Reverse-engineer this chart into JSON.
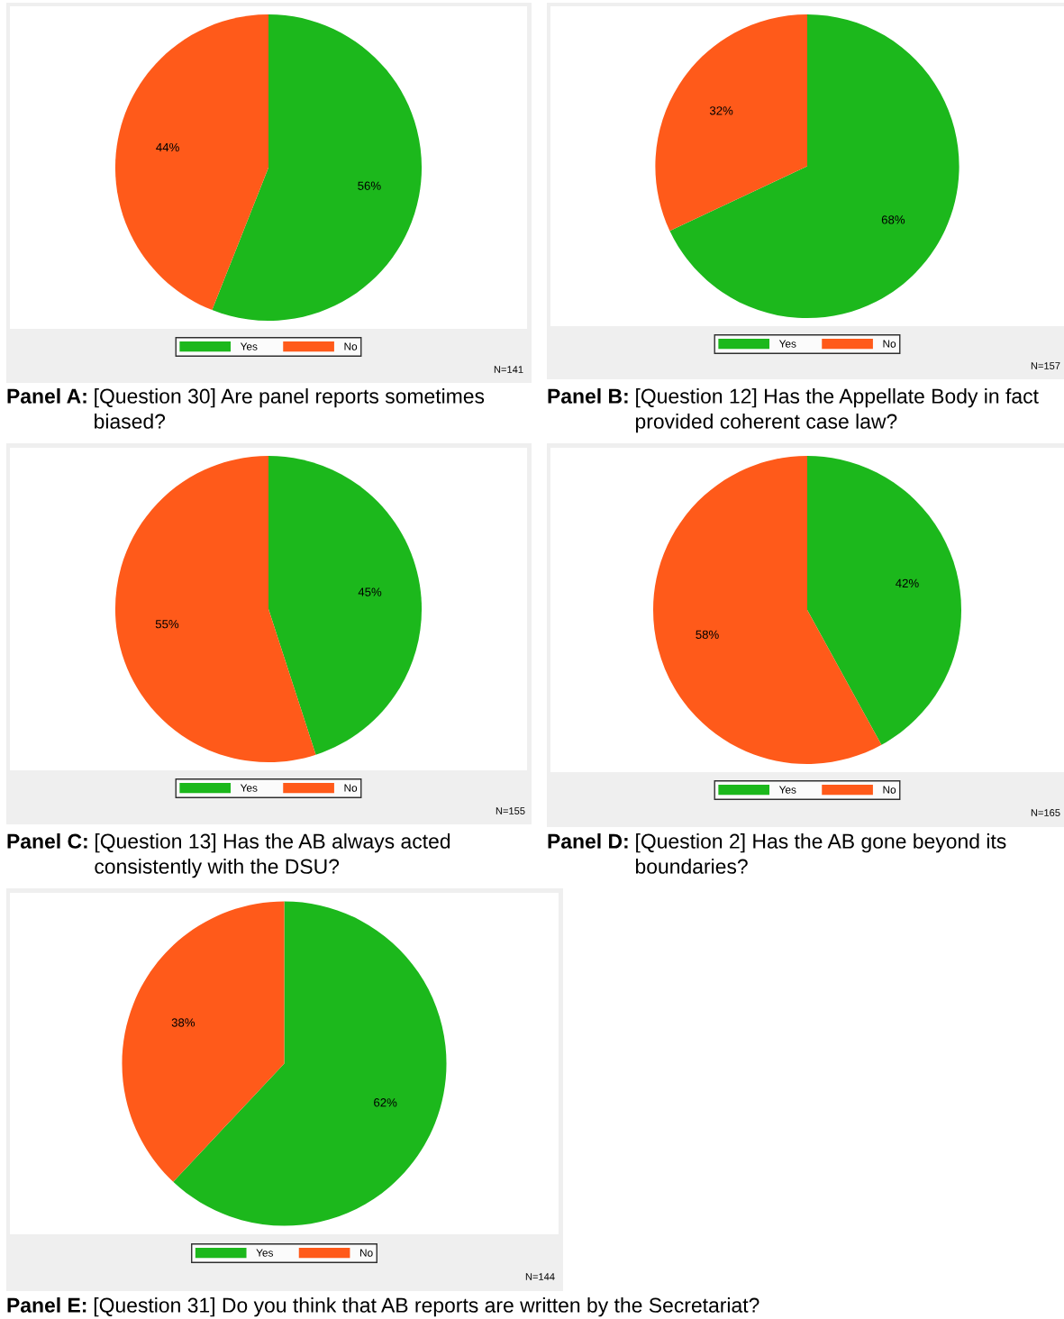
{
  "chart_data": [
    {
      "type": "pie",
      "title": "Panel A:",
      "subtitle": "[Question 30] Are panel reports sometimes biased?",
      "categories": [
        "Yes",
        "No"
      ],
      "values": [
        56,
        44
      ],
      "colors": [
        "#1cb81c",
        "#ff5a1a"
      ],
      "value_labels": [
        "56%",
        "44%"
      ],
      "legend": "bottom",
      "annotations": [
        "N=141"
      ]
    },
    {
      "type": "pie",
      "title": "Panel B:",
      "subtitle": "[Question 12] Has the Appellate Body in fact provided coherent case law?",
      "categories": [
        "Yes",
        "No"
      ],
      "values": [
        68,
        32
      ],
      "colors": [
        "#1cb81c",
        "#ff5a1a"
      ],
      "value_labels": [
        "68%",
        "32%"
      ],
      "legend": "bottom",
      "annotations": [
        "N=157"
      ]
    },
    {
      "type": "pie",
      "title": "Panel C:",
      "subtitle": "[Question 13] Has the AB always acted consistently with the DSU?",
      "categories": [
        "Yes",
        "No"
      ],
      "values": [
        45,
        55
      ],
      "colors": [
        "#1cb81c",
        "#ff5a1a"
      ],
      "value_labels": [
        "45%",
        "55%"
      ],
      "legend": "bottom",
      "annotations": [
        "N=155"
      ]
    },
    {
      "type": "pie",
      "title": "Panel D:",
      "subtitle": "[Question 2] Has the AB gone beyond its boundaries?",
      "categories": [
        "Yes",
        "No"
      ],
      "values": [
        42,
        58
      ],
      "colors": [
        "#1cb81c",
        "#ff5a1a"
      ],
      "value_labels": [
        "42%",
        "58%"
      ],
      "legend": "bottom",
      "annotations": [
        "N=165"
      ]
    },
    {
      "type": "pie",
      "title": "Panel E:",
      "subtitle": "[Question 31] Do you think that AB reports are written by the Secretariat?",
      "categories": [
        "Yes",
        "No"
      ],
      "values": [
        62,
        38
      ],
      "colors": [
        "#1cb81c",
        "#ff5a1a"
      ],
      "value_labels": [
        "62%",
        "38%"
      ],
      "legend": "bottom",
      "annotations": [
        "N=144"
      ]
    }
  ]
}
